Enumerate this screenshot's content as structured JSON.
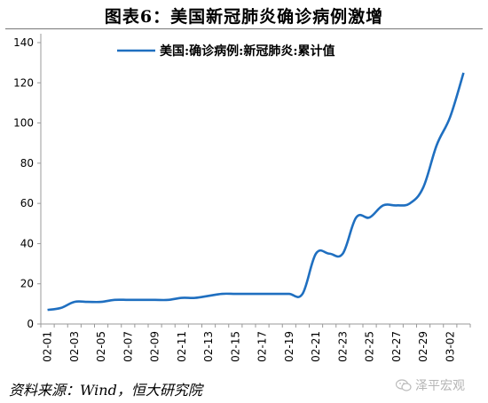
{
  "header": {
    "title": "图表6：美国新冠肺炎确诊病例激增"
  },
  "footer": {
    "source": "资料来源：Wind，恒大研究院",
    "watermark": "泽平宏观"
  },
  "icons": {
    "watermark": "wechat-icon"
  },
  "colors": {
    "line": "#1f6fc0",
    "axis": "#999999",
    "text": "#000000"
  },
  "chart_data": {
    "type": "line",
    "title": "",
    "xlabel": "",
    "ylabel": "",
    "ylim": [
      0,
      140
    ],
    "yticks": [
      0,
      20,
      40,
      60,
      80,
      100,
      120,
      140
    ],
    "grid": false,
    "legend": "top-center",
    "x": [
      "02-01",
      "02-02",
      "02-03",
      "02-04",
      "02-05",
      "02-06",
      "02-07",
      "02-08",
      "02-09",
      "02-10",
      "02-11",
      "02-12",
      "02-13",
      "02-14",
      "02-15",
      "02-16",
      "02-17",
      "02-18",
      "02-19",
      "02-20",
      "02-21",
      "02-22",
      "02-23",
      "02-24",
      "02-25",
      "02-26",
      "02-27",
      "02-28",
      "02-29",
      "03-01",
      "03-02",
      "03-03"
    ],
    "xtick_labels": [
      "02-01",
      "02-03",
      "02-05",
      "02-07",
      "02-09",
      "02-11",
      "02-13",
      "02-15",
      "02-17",
      "02-19",
      "02-21",
      "02-23",
      "02-25",
      "02-27",
      "02-29",
      "03-02"
    ],
    "series": [
      {
        "name": "美国:确诊病例:新冠肺炎:累计值",
        "values": [
          7,
          8,
          11,
          11,
          11,
          12,
          12,
          12,
          12,
          12,
          13,
          13,
          14,
          15,
          15,
          15,
          15,
          15,
          15,
          15,
          35,
          35,
          35,
          53,
          53,
          59,
          59,
          60,
          68,
          89,
          103,
          125
        ]
      }
    ]
  }
}
